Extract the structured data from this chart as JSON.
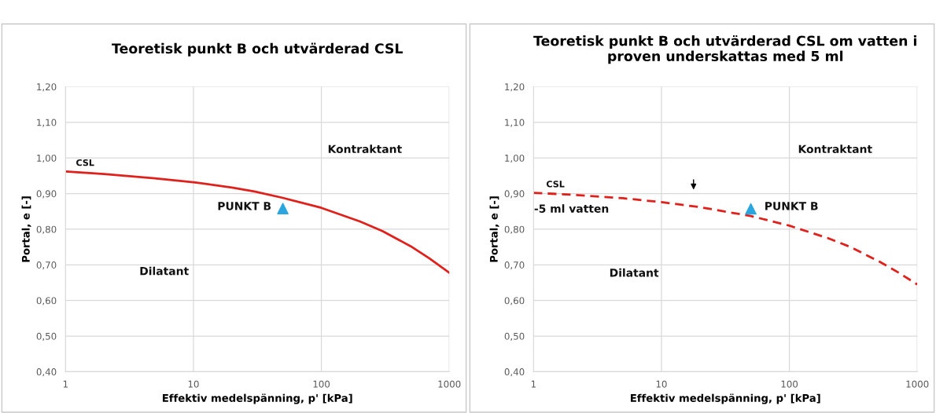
{
  "chart_data": [
    {
      "type": "line",
      "title": "Teoretisk punkt B och utvärderad CSL",
      "xlabel": "Effektiv medelspänning, p' [kPa]",
      "ylabel": "Portal, e [-]",
      "log": "x",
      "grid": true,
      "xlim": [
        1,
        1000
      ],
      "xticks": [
        1,
        10,
        100,
        1000
      ],
      "ylim": [
        0.4,
        1.2
      ],
      "yticks": [
        {
          "value": 0.4,
          "label": "0,40"
        },
        {
          "value": 0.5,
          "label": "0,50"
        },
        {
          "value": 0.6,
          "label": "0,60"
        },
        {
          "value": 0.7,
          "label": "0,70"
        },
        {
          "value": 0.8,
          "label": "0,80"
        },
        {
          "value": 0.9,
          "label": "0,90"
        },
        {
          "value": 1.0,
          "label": "1,00"
        },
        {
          "value": 1.1,
          "label": "1,10"
        },
        {
          "value": 1.2,
          "label": "1,20"
        }
      ],
      "series": [
        {
          "color": "#e0201b",
          "line_style": "solid",
          "x": [
            1,
            2,
            5,
            10,
            20,
            30,
            50,
            100,
            200,
            300,
            500,
            700,
            1000
          ],
          "values": [
            0.962,
            0.955,
            0.943,
            0.932,
            0.917,
            0.906,
            0.888,
            0.86,
            0.822,
            0.795,
            0.752,
            0.718,
            0.678
          ]
        },
        {
          "type": "scatter",
          "color": "#2ba6de",
          "marker": "triangle",
          "x": [
            50
          ],
          "values": [
            0.858
          ]
        }
      ],
      "annotations": [
        "CSL",
        "Kontraktant",
        "Dilatant",
        "PUNKT B"
      ]
    },
    {
      "type": "line",
      "title": "Teoretisk punkt B och utvärderad CSL om vatten i proven underskattas med 5 ml",
      "xlabel": "Effektiv medelspänning, p' [kPa]",
      "ylabel": "Portal, e [-]",
      "log": "x",
      "grid": true,
      "xlim": [
        1,
        1000
      ],
      "xticks": [
        1,
        10,
        100,
        1000
      ],
      "ylim": [
        0.4,
        1.2
      ],
      "yticks": [
        {
          "value": 0.4,
          "label": "0,40"
        },
        {
          "value": 0.5,
          "label": "0,50"
        },
        {
          "value": 0.6,
          "label": "0,60"
        },
        {
          "value": 0.7,
          "label": "0,70"
        },
        {
          "value": 0.8,
          "label": "0,80"
        },
        {
          "value": 0.9,
          "label": "0,90"
        },
        {
          "value": 1.0,
          "label": "1,00"
        },
        {
          "value": 1.1,
          "label": "1,10"
        },
        {
          "value": 1.2,
          "label": "1,20"
        }
      ],
      "series": [
        {
          "color": "#e0201b",
          "line_style": "dashed",
          "x": [
            1,
            2,
            5,
            10,
            20,
            50,
            100,
            200,
            300,
            500,
            700,
            1000
          ],
          "values": [
            0.902,
            0.897,
            0.887,
            0.876,
            0.862,
            0.837,
            0.81,
            0.775,
            0.75,
            0.71,
            0.68,
            0.645
          ]
        },
        {
          "type": "scatter",
          "color": "#2ba6de",
          "marker": "triangle",
          "x": [
            50
          ],
          "values": [
            0.857
          ]
        }
      ],
      "annotations": [
        "CSL",
        "-5 ml vatten",
        "Kontraktant",
        "Dilatant",
        "PUNKT B"
      ]
    }
  ]
}
